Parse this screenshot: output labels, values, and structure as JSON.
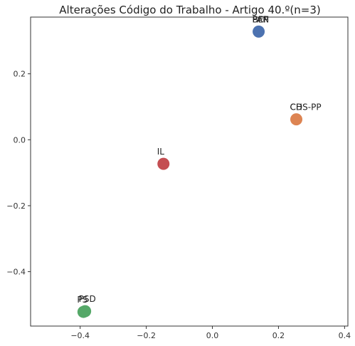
{
  "chart_data": {
    "type": "scatter",
    "title": "Alterações Código do Trabalho - Artigo 40.º(n=3)",
    "xlabel": "",
    "ylabel": "",
    "xlim": [
      -0.55,
      0.41
    ],
    "ylim": [
      -0.565,
      0.372
    ],
    "xticks": [
      {
        "value": -0.4,
        "label": "−0.4"
      },
      {
        "value": -0.2,
        "label": "−0.2"
      },
      {
        "value": 0.0,
        "label": "0.0"
      },
      {
        "value": 0.2,
        "label": "0.2"
      },
      {
        "value": 0.4,
        "label": "0.4"
      }
    ],
    "yticks": [
      {
        "value": 0.2,
        "label": "0.2"
      },
      {
        "value": 0.0,
        "label": "0.0"
      },
      {
        "value": -0.2,
        "label": "−0.2"
      },
      {
        "value": -0.4,
        "label": "−0.4"
      }
    ],
    "grid": false,
    "points": [
      {
        "x": 0.14,
        "y": 0.328,
        "color": "#4c72b0",
        "labels": [
          "BE",
          "PCP",
          "PAN"
        ]
      },
      {
        "x": 0.254,
        "y": 0.062,
        "color": "#dd8452",
        "labels": [
          "CDS-PP",
          "CH"
        ]
      },
      {
        "x": -0.148,
        "y": -0.073,
        "color": "#c44e52",
        "labels": [
          "IL"
        ]
      },
      {
        "x": -0.385,
        "y": -0.52,
        "color": "#55a868",
        "labels": [
          "PSD"
        ]
      },
      {
        "x": -0.39,
        "y": -0.522,
        "color": "#55a868",
        "labels": [
          "PS"
        ]
      }
    ]
  }
}
